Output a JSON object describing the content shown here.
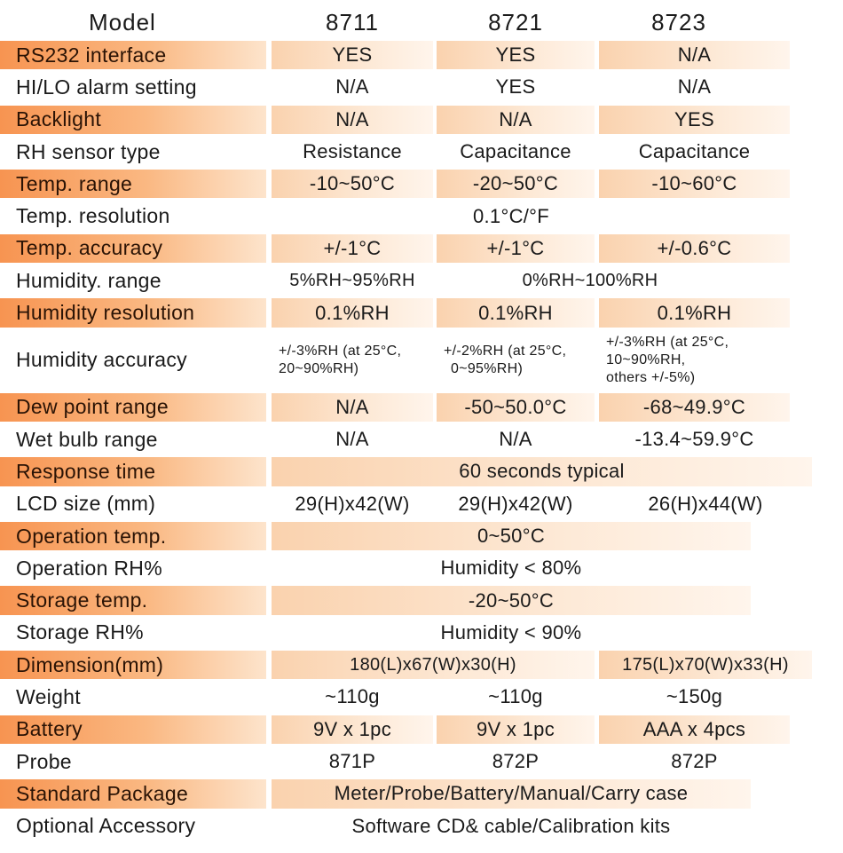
{
  "header": {
    "label": "Model",
    "models": [
      "8711",
      "8721",
      "8723"
    ]
  },
  "rows": [
    {
      "label": "RS232 interface",
      "v1": "YES",
      "v2": "YES",
      "v3": "N/A"
    },
    {
      "label": "HI/LO alarm setting",
      "v1": "N/A",
      "v2": "YES",
      "v3": "N/A"
    },
    {
      "label": "Backlight",
      "v1": "N/A",
      "v2": "N/A",
      "v3": "YES"
    },
    {
      "label": "RH sensor type",
      "v1": "Resistance",
      "v2": "Capacitance",
      "v3": "Capacitance"
    },
    {
      "label": "Temp. range",
      "v1": "-10~50°C",
      "v2": "-20~50°C",
      "v3": "-10~60°C"
    },
    {
      "label": "Temp. resolution",
      "all": "0.1°C/°F"
    },
    {
      "label": "Temp. accuracy",
      "v1": "+/-1°C",
      "v2": "+/-1°C",
      "v3": "+/-0.6°C"
    },
    {
      "label": "Humidity. range",
      "v1": "5%RH~95%RH",
      "v23": "0%RH~100%RH"
    },
    {
      "label": "Humidity resolution",
      "v1": "0.1%RH",
      "v2": "0.1%RH",
      "v3": "0.1%RH"
    },
    {
      "label": "Humidity accuracy",
      "v1": [
        "+/-3%RH (at 25°C,",
        "20~90%RH)"
      ],
      "v2": [
        "+/-2%RH (at 25°C,",
        "0~95%RH)"
      ],
      "v3": [
        "+/-3%RH (at 25°C,",
        "10~90%RH,",
        "others +/-5%)"
      ]
    },
    {
      "label": "Dew point range",
      "v1": "N/A",
      "v2": "-50~50.0°C",
      "v3": "-68~49.9°C"
    },
    {
      "label": "Wet bulb range",
      "v1": "N/A",
      "v2": "N/A",
      "v3": "-13.4~59.9°C"
    },
    {
      "label": "Response time",
      "all": "60 seconds typical"
    },
    {
      "label": "LCD size (mm)",
      "v1": "29(H)x42(W)",
      "v2": "29(H)x42(W)",
      "v3": "26(H)x44(W)"
    },
    {
      "label": "Operation temp.",
      "all": "0~50°C"
    },
    {
      "label": "Operation RH%",
      "all": "Humidity < 80%"
    },
    {
      "label": "Storage temp.",
      "all": "-20~50°C"
    },
    {
      "label": "Storage RH%",
      "all": "Humidity < 90%"
    },
    {
      "label": "Dimension(mm)",
      "v12": "180(L)x67(W)x30(H)",
      "v3": "175(L)x70(W)x33(H)"
    },
    {
      "label": "Weight",
      "v1": "~110g",
      "v2": "~110g",
      "v3": "~150g"
    },
    {
      "label": "Battery",
      "v1": "9V x 1pc",
      "v2": "9V x 1pc",
      "v3": "AAA x 4pcs"
    },
    {
      "label": "Probe",
      "v1": "871P",
      "v2": "872P",
      "v3": "872P"
    },
    {
      "label": "Standard Package",
      "all": "Meter/Probe/Battery/Manual/Carry case"
    },
    {
      "label": "Optional Accessory",
      "all": "Software CD& cable/Calibration kits"
    }
  ],
  "colors": {
    "accent": "#f79451",
    "accent_light": "#fde4cc"
  }
}
